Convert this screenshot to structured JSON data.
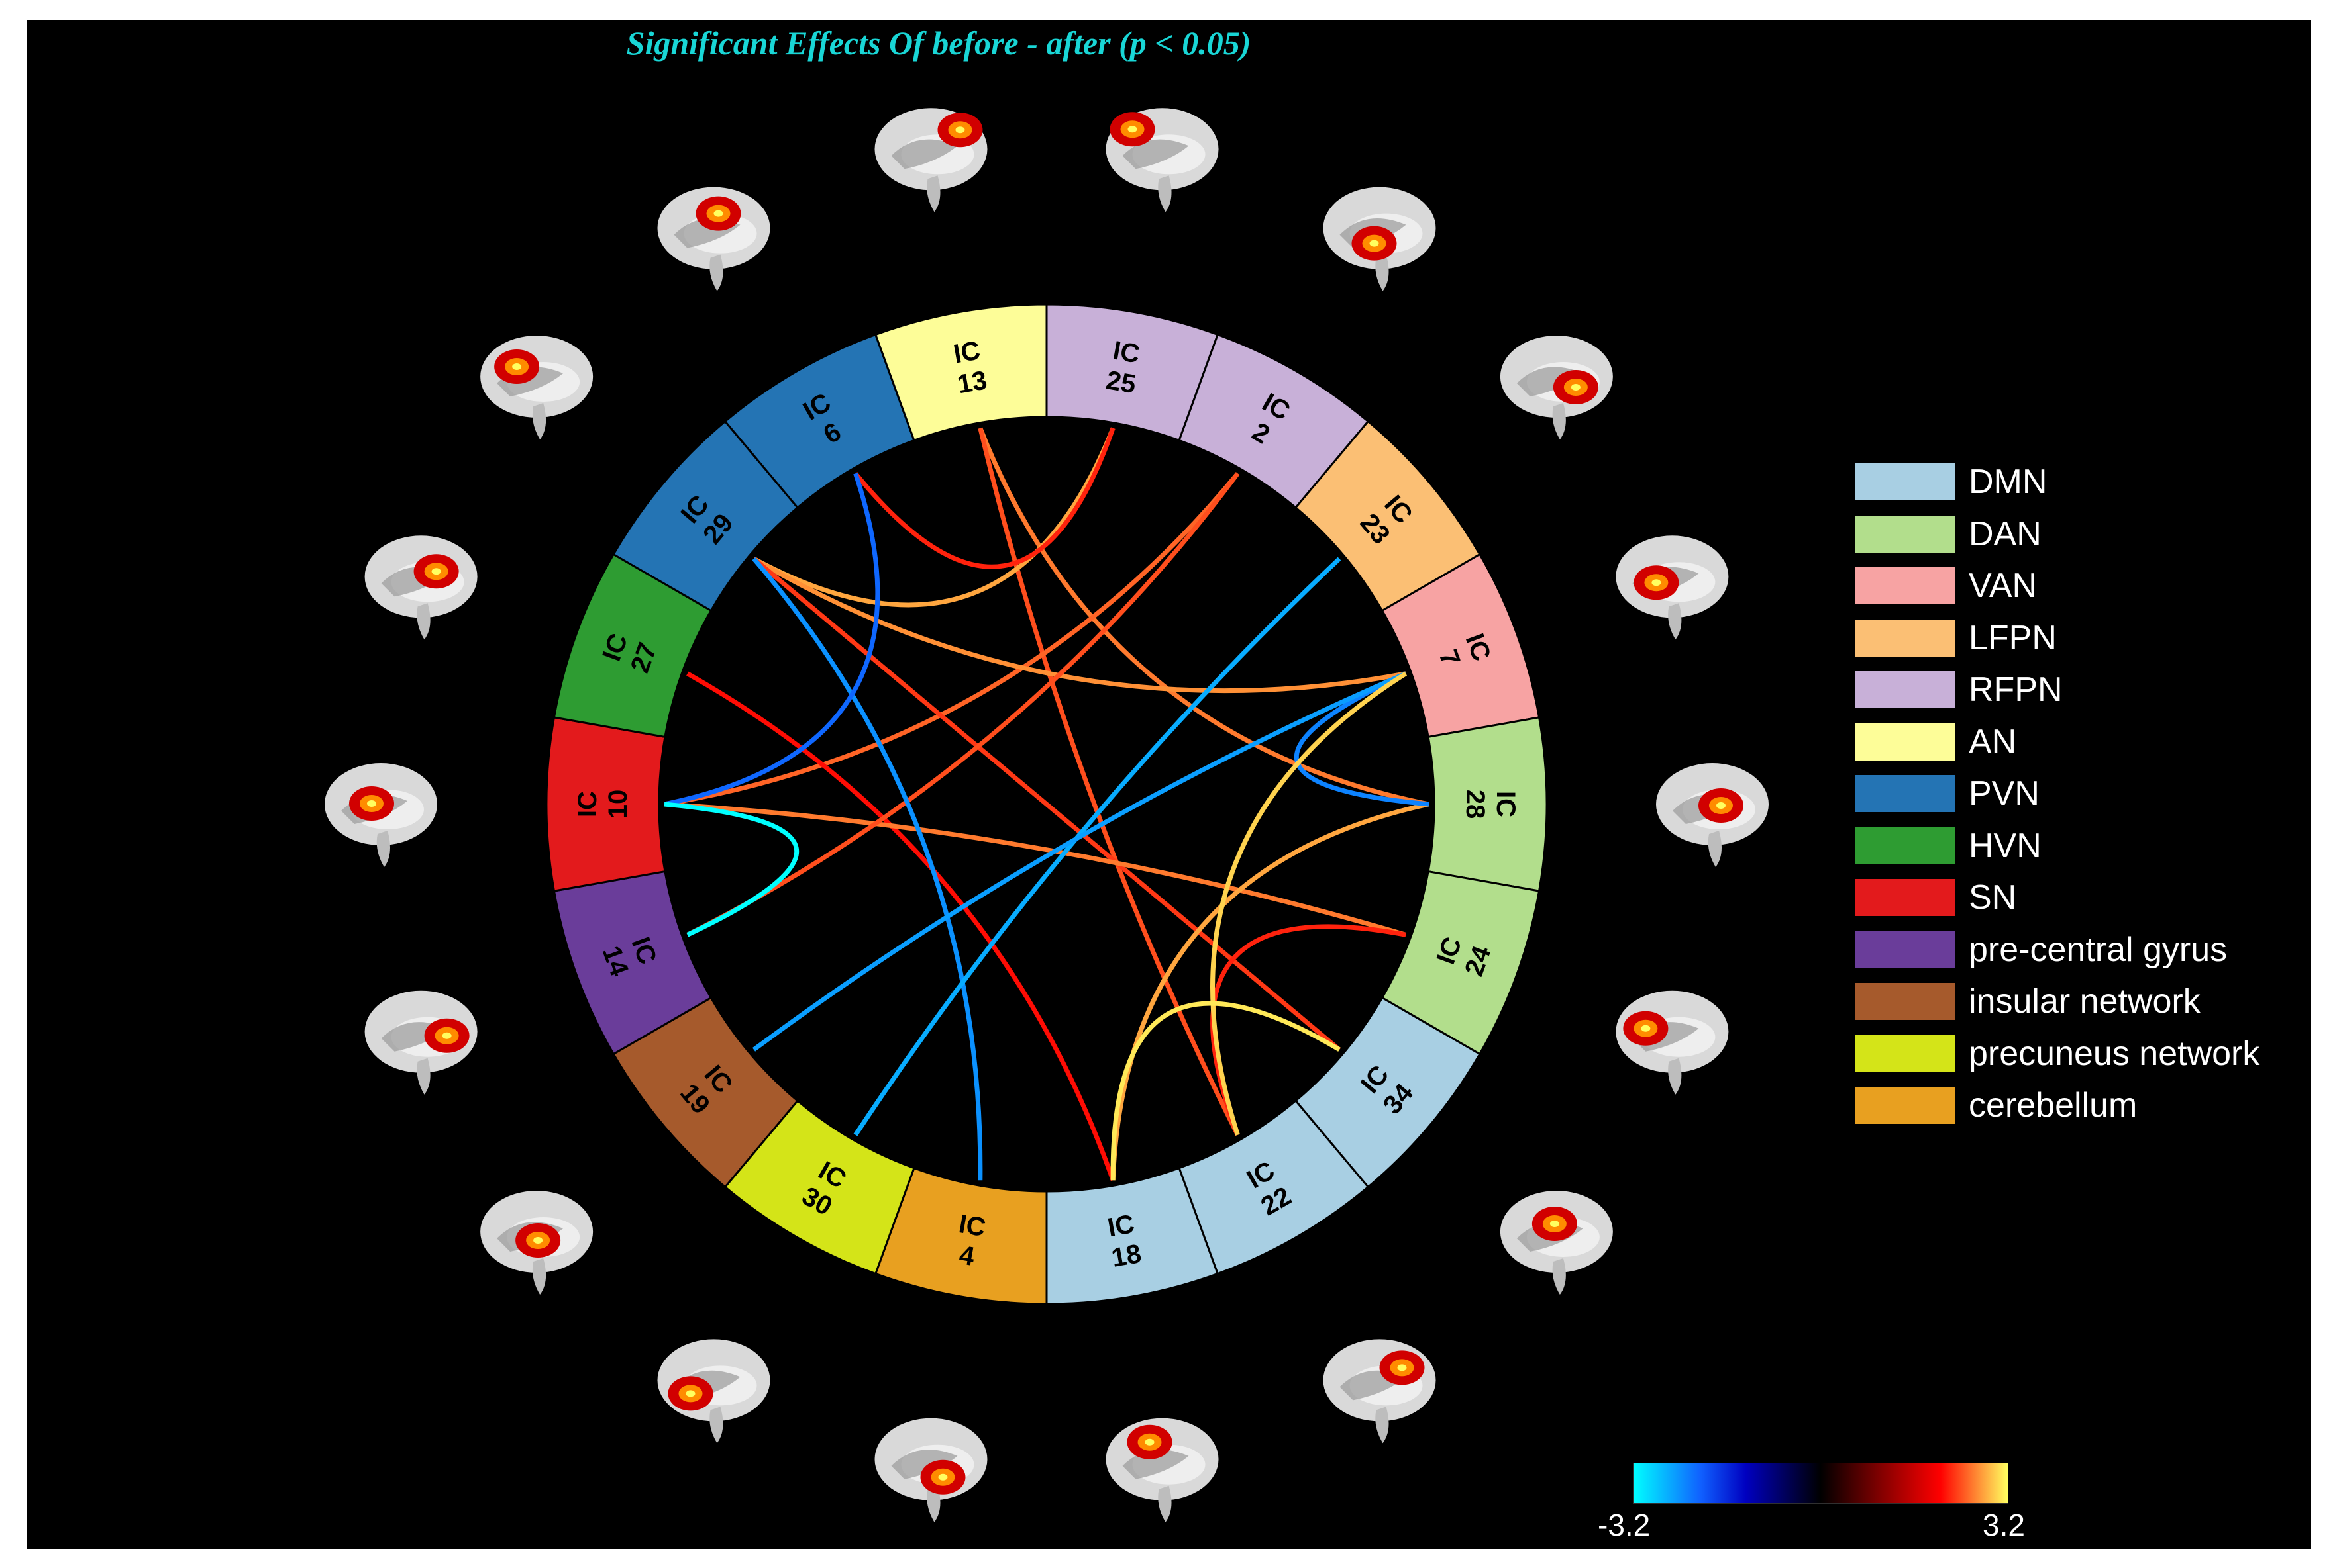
{
  "title": "Significant Effects Of before - after (p < 0.05)",
  "segments": [
    {
      "label": [
        "IC",
        "25"
      ],
      "color": "#c8b0d8"
    },
    {
      "label": [
        "IC",
        "2"
      ],
      "color": "#c8b0d8"
    },
    {
      "label": [
        "IC",
        "23"
      ],
      "color": "#fbbf74"
    },
    {
      "label": [
        "IC",
        "7"
      ],
      "color": "#f7a3a3"
    },
    {
      "label": [
        "IC",
        "28"
      ],
      "color": "#b2de8c"
    },
    {
      "label": [
        "IC",
        "24"
      ],
      "color": "#b2de8c"
    },
    {
      "label": [
        "IC",
        "34"
      ],
      "color": "#a8cfe3"
    },
    {
      "label": [
        "IC",
        "22"
      ],
      "color": "#a8cfe3"
    },
    {
      "label": [
        "IC",
        "18"
      ],
      "color": "#a8cfe3"
    },
    {
      "label": [
        "IC",
        "4"
      ],
      "color": "#e8a020"
    },
    {
      "label": [
        "IC",
        "30"
      ],
      "color": "#d4e418"
    },
    {
      "label": [
        "IC",
        "19"
      ],
      "color": "#a65a2c"
    },
    {
      "label": [
        "IC",
        "14"
      ],
      "color": "#6a3d9a"
    },
    {
      "label": [
        "IC",
        "10"
      ],
      "color": "#e31a1c"
    },
    {
      "label": [
        "IC",
        "27"
      ],
      "color": "#2e9c32"
    },
    {
      "label": [
        "IC",
        "29"
      ],
      "color": "#2474b4"
    },
    {
      "label": [
        "IC",
        "6"
      ],
      "color": "#2474b4"
    },
    {
      "label": [
        "IC",
        "13"
      ],
      "color": "#fdfd98"
    }
  ],
  "connections": [
    {
      "a": "13",
      "b": "28",
      "value": 2.6
    },
    {
      "a": "13",
      "b": "22",
      "value": 2.4
    },
    {
      "a": "25",
      "b": "29",
      "value": 2.8
    },
    {
      "a": "25",
      "b": "6",
      "value": 2.2
    },
    {
      "a": "2",
      "b": "10",
      "value": 2.5
    },
    {
      "a": "29",
      "b": "7",
      "value": 2.7
    },
    {
      "a": "29",
      "b": "34",
      "value": 2.3
    },
    {
      "a": "27",
      "b": "18",
      "value": 2.1
    },
    {
      "a": "10",
      "b": "24",
      "value": 2.6
    },
    {
      "a": "14",
      "b": "2",
      "value": 2.4
    },
    {
      "a": "18",
      "b": "28",
      "value": 2.8
    },
    {
      "a": "22",
      "b": "24",
      "value": 2.2
    },
    {
      "a": "29",
      "b": "4",
      "value": -2.4
    },
    {
      "a": "23",
      "b": "30",
      "value": -2.6
    },
    {
      "a": "7",
      "b": "28",
      "value": -2.3
    },
    {
      "a": "10",
      "b": "6",
      "value": -2.1
    },
    {
      "a": "19",
      "b": "7",
      "value": -2.5
    },
    {
      "a": "10",
      "b": "14",
      "value": -3.2
    },
    {
      "a": "7",
      "b": "22",
      "value": 3.0
    },
    {
      "a": "18",
      "b": "34",
      "value": 3.1
    }
  ],
  "legend": [
    {
      "label": "DMN",
      "color": "#a8cfe3"
    },
    {
      "label": "DAN",
      "color": "#b2de8c"
    },
    {
      "label": "VAN",
      "color": "#f7a3a3"
    },
    {
      "label": "LFPN",
      "color": "#fbbf74"
    },
    {
      "label": "RFPN",
      "color": "#c8b0d8"
    },
    {
      "label": "AN",
      "color": "#fdfd98"
    },
    {
      "label": "PVN",
      "color": "#2474b4"
    },
    {
      "label": "HVN",
      "color": "#2e9c32"
    },
    {
      "label": "SN",
      "color": "#e31a1c"
    },
    {
      "label": "pre-central gyrus",
      "color": "#6a3d9a"
    },
    {
      "label": "insular network",
      "color": "#a65a2c"
    },
    {
      "label": "precuneus network",
      "color": "#d4e418"
    },
    {
      "label": "cerebellum",
      "color": "#e8a020"
    }
  ],
  "colorbar": {
    "min_label": "-3.2",
    "max_label": "3.2",
    "min": -3.2,
    "max": 3.2
  }
}
